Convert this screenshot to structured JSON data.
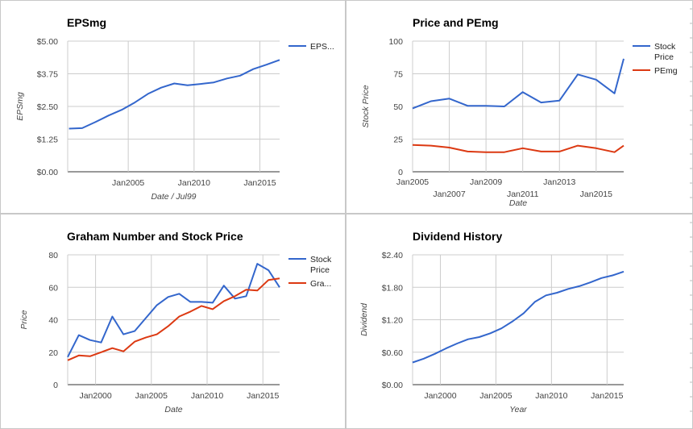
{
  "chart_data": [
    {
      "type": "line",
      "title": "EPSmg",
      "xlabel": "Date / Jul99",
      "ylabel": "EPSmg",
      "ylim": [
        0,
        5
      ],
      "yticks": [
        "$0.00",
        "$1.25",
        "$2.50",
        "$3.75",
        "$5.00"
      ],
      "yticks_values": [
        0,
        1.25,
        2.5,
        3.75,
        5
      ],
      "xlim": [
        2000.4,
        2016.5
      ],
      "xticks": [
        "Jan2005",
        "Jan2010",
        "Jan2015"
      ],
      "xticks_values": [
        2005,
        2010,
        2015
      ],
      "legend_position": "right",
      "series": [
        {
          "name": "EPS...",
          "color": "#3366cc",
          "x": [
            2000.5,
            2001.5,
            2002.5,
            2003.5,
            2004.5,
            2005.5,
            2006.5,
            2007.5,
            2008.5,
            2009.5,
            2010.5,
            2011.5,
            2012.5,
            2013.5,
            2014.5,
            2015.5,
            2016.5
          ],
          "values": [
            1.65,
            1.67,
            1.9,
            2.15,
            2.37,
            2.65,
            2.98,
            3.22,
            3.38,
            3.31,
            3.36,
            3.42,
            3.57,
            3.68,
            3.93,
            4.1,
            4.28
          ]
        }
      ]
    },
    {
      "type": "line",
      "title": "Price and PEmg",
      "xlabel": "Date",
      "ylabel": "Stock Price",
      "ylim": [
        0,
        100
      ],
      "yticks": [
        "0",
        "25",
        "50",
        "75",
        "100"
      ],
      "yticks_values": [
        0,
        25,
        50,
        75,
        100
      ],
      "xlim": [
        2005,
        2016.5
      ],
      "xticks": [
        "Jan2005",
        "Jan2007",
        "Jan2009",
        "Jan2011",
        "Jan2013",
        "Jan2015"
      ],
      "xticks_values": [
        2005,
        2007,
        2009,
        2011,
        2013,
        2015
      ],
      "legend_position": "right",
      "series": [
        {
          "name": "Stock Price",
          "color": "#3366cc",
          "x": [
            2005,
            2006,
            2007,
            2008,
            2009,
            2010,
            2011,
            2012,
            2013,
            2014,
            2015,
            2016,
            2016.5
          ],
          "values": [
            48.5,
            54,
            56,
            50.5,
            50.5,
            50,
            61,
            53,
            54.5,
            74.5,
            70.5,
            60,
            86.5
          ]
        },
        {
          "name": "PEmg",
          "color": "#dc3912",
          "x": [
            2005,
            2006,
            2007,
            2008,
            2009,
            2010,
            2011,
            2012,
            2013,
            2014,
            2015,
            2016,
            2016.5
          ],
          "values": [
            20.5,
            20,
            18.5,
            15.5,
            15,
            15,
            18,
            15.5,
            15.5,
            20,
            18,
            15,
            20
          ]
        }
      ]
    },
    {
      "type": "line",
      "title": "Graham Number and Stock Price",
      "xlabel": "Date",
      "ylabel": "Price",
      "ylim": [
        0,
        80
      ],
      "yticks": [
        "0",
        "20",
        "40",
        "60",
        "80"
      ],
      "yticks_values": [
        0,
        20,
        40,
        60,
        80
      ],
      "xlim": [
        1997.5,
        2016.5
      ],
      "xticks": [
        "Jan2000",
        "Jan2005",
        "Jan2010",
        "Jan2015"
      ],
      "xticks_values": [
        2000,
        2005,
        2010,
        2015
      ],
      "legend_position": "right",
      "series": [
        {
          "name": "Stock Price",
          "color": "#3366cc",
          "x": [
            1997.5,
            1998.5,
            1999.5,
            2000.5,
            2001.5,
            2002.5,
            2003.5,
            2004.5,
            2005.5,
            2006.5,
            2007.5,
            2008.5,
            2009.5,
            2010.5,
            2011.5,
            2012.5,
            2013.5,
            2014.5,
            2015.5,
            2016.5
          ],
          "values": [
            17,
            30.5,
            27.5,
            26,
            42,
            31,
            33,
            41,
            49,
            54,
            56,
            51,
            51,
            50.5,
            61,
            53,
            54.5,
            74.5,
            70.5,
            60
          ]
        },
        {
          "name": "Gra...",
          "color": "#dc3912",
          "x": [
            1997.5,
            1998.5,
            1999.5,
            2000.5,
            2001.5,
            2002.5,
            2003.5,
            2004.5,
            2005.5,
            2006.5,
            2007.5,
            2008.5,
            2009.5,
            2010.5,
            2011.5,
            2012.5,
            2013.5,
            2014.5,
            2015.5,
            2016.5
          ],
          "values": [
            15,
            18,
            17.5,
            20,
            22.5,
            20.5,
            26.5,
            29,
            31,
            36,
            42,
            45,
            48.5,
            46.5,
            51.5,
            54.5,
            58.5,
            58,
            64.5,
            65.5
          ]
        }
      ]
    },
    {
      "type": "line",
      "title": "Dividend History",
      "xlabel": "Year",
      "ylabel": "Dividend",
      "ylim": [
        0,
        2.4
      ],
      "yticks": [
        "$0.00",
        "$0.60",
        "$1.20",
        "$1.80",
        "$2.40"
      ],
      "yticks_values": [
        0,
        0.6,
        1.2,
        1.8,
        2.4
      ],
      "xlim": [
        1997.5,
        2016.5
      ],
      "xticks": [
        "Jan2000",
        "Jan2005",
        "Jan2010",
        "Jan2015"
      ],
      "xticks_values": [
        2000,
        2005,
        2010,
        2015
      ],
      "legend_position": "none",
      "series": [
        {
          "name": "",
          "color": "#3366cc",
          "x": [
            1997.5,
            1998.5,
            1999.5,
            2000.5,
            2001.5,
            2002.5,
            2003.5,
            2004.5,
            2005.5,
            2006.5,
            2007.5,
            2008.5,
            2009.5,
            2010.5,
            2011.5,
            2012.5,
            2013.5,
            2014.5,
            2015.5,
            2016.5
          ],
          "values": [
            0.41,
            0.48,
            0.57,
            0.67,
            0.76,
            0.84,
            0.88,
            0.95,
            1.04,
            1.17,
            1.32,
            1.53,
            1.65,
            1.7,
            1.77,
            1.82,
            1.89,
            1.97,
            2.02,
            2.09
          ]
        }
      ]
    }
  ]
}
